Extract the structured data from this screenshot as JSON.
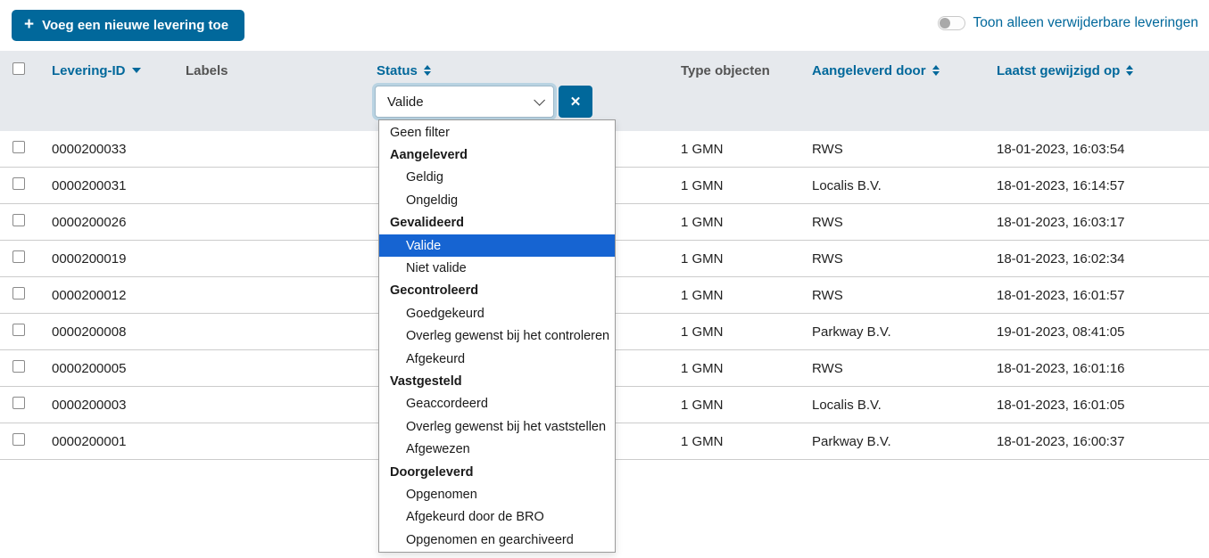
{
  "toolbar": {
    "add_button_label": "Voeg een nieuwe levering toe",
    "add_button_icon": "plus-icon",
    "toggle_label": "Toon alleen verwijderbare leveringen",
    "toggle_state": "off"
  },
  "colors": {
    "primary_blue": "#01689b",
    "header_band_bg": "#e6e9ed",
    "selected_option_bg": "#1664d2",
    "row_separator": "#cccccc"
  },
  "table": {
    "headers": {
      "levering_id": "Levering-ID",
      "labels": "Labels",
      "status": "Status",
      "type_objecten": "Type objecten",
      "aangeleverd_door": "Aangeleverd door",
      "laatst_gewijzigd_op": "Laatst gewijzigd op"
    },
    "sort_state": {
      "levering_id": "sorted-descending",
      "status": "sortable",
      "aangeleverd_door": "sortable",
      "laatst_gewijzigd_op": "sortable"
    },
    "rows": [
      {
        "id": "0000200033",
        "labels": "",
        "status": "",
        "type": "1 GMN",
        "door": "RWS",
        "gewijzigd": "18-01-2023, 16:03:54"
      },
      {
        "id": "0000200031",
        "labels": "",
        "status": "",
        "type": "1 GMN",
        "door": "Localis B.V.",
        "gewijzigd": "18-01-2023, 16:14:57"
      },
      {
        "id": "0000200026",
        "labels": "",
        "status": "",
        "type": "1 GMN",
        "door": "RWS",
        "gewijzigd": "18-01-2023, 16:03:17"
      },
      {
        "id": "0000200019",
        "labels": "",
        "status": "",
        "type": "1 GMN",
        "door": "RWS",
        "gewijzigd": "18-01-2023, 16:02:34"
      },
      {
        "id": "0000200012",
        "labels": "",
        "status": "",
        "type": "1 GMN",
        "door": "RWS",
        "gewijzigd": "18-01-2023, 16:01:57"
      },
      {
        "id": "0000200008",
        "labels": "",
        "status": "",
        "type": "1 GMN",
        "door": "Parkway B.V.",
        "gewijzigd": "19-01-2023, 08:41:05"
      },
      {
        "id": "0000200005",
        "labels": "",
        "status": "",
        "type": "1 GMN",
        "door": "RWS",
        "gewijzigd": "18-01-2023, 16:01:16"
      },
      {
        "id": "0000200003",
        "labels": "",
        "status": "",
        "type": "1 GMN",
        "door": "Localis B.V.",
        "gewijzigd": "18-01-2023, 16:01:05"
      },
      {
        "id": "0000200001",
        "labels": "",
        "status": "",
        "type": "1 GMN",
        "door": "Parkway B.V.",
        "gewijzigd": "18-01-2023, 16:00:37"
      }
    ]
  },
  "status_filter": {
    "selected_value": "Valide",
    "clear_button_icon": "x-icon",
    "clear_button_glyph": "✕",
    "options": [
      {
        "label": "Geen filter",
        "kind": "option"
      },
      {
        "label": "Aangeleverd",
        "kind": "group"
      },
      {
        "label": "Geldig",
        "kind": "sub"
      },
      {
        "label": "Ongeldig",
        "kind": "sub"
      },
      {
        "label": "Gevalideerd",
        "kind": "group"
      },
      {
        "label": "Valide",
        "kind": "sub",
        "selected": true
      },
      {
        "label": "Niet valide",
        "kind": "sub"
      },
      {
        "label": "Gecontroleerd",
        "kind": "group"
      },
      {
        "label": "Goedgekeurd",
        "kind": "sub"
      },
      {
        "label": "Overleg gewenst bij het controleren",
        "kind": "sub"
      },
      {
        "label": "Afgekeurd",
        "kind": "sub"
      },
      {
        "label": "Vastgesteld",
        "kind": "group"
      },
      {
        "label": "Geaccordeerd",
        "kind": "sub"
      },
      {
        "label": "Overleg gewenst bij het vaststellen",
        "kind": "sub"
      },
      {
        "label": "Afgewezen",
        "kind": "sub"
      },
      {
        "label": "Doorgeleverd",
        "kind": "group"
      },
      {
        "label": "Opgenomen",
        "kind": "sub"
      },
      {
        "label": "Afgekeurd door de BRO",
        "kind": "sub"
      },
      {
        "label": "Opgenomen en gearchiveerd",
        "kind": "sub"
      }
    ]
  }
}
